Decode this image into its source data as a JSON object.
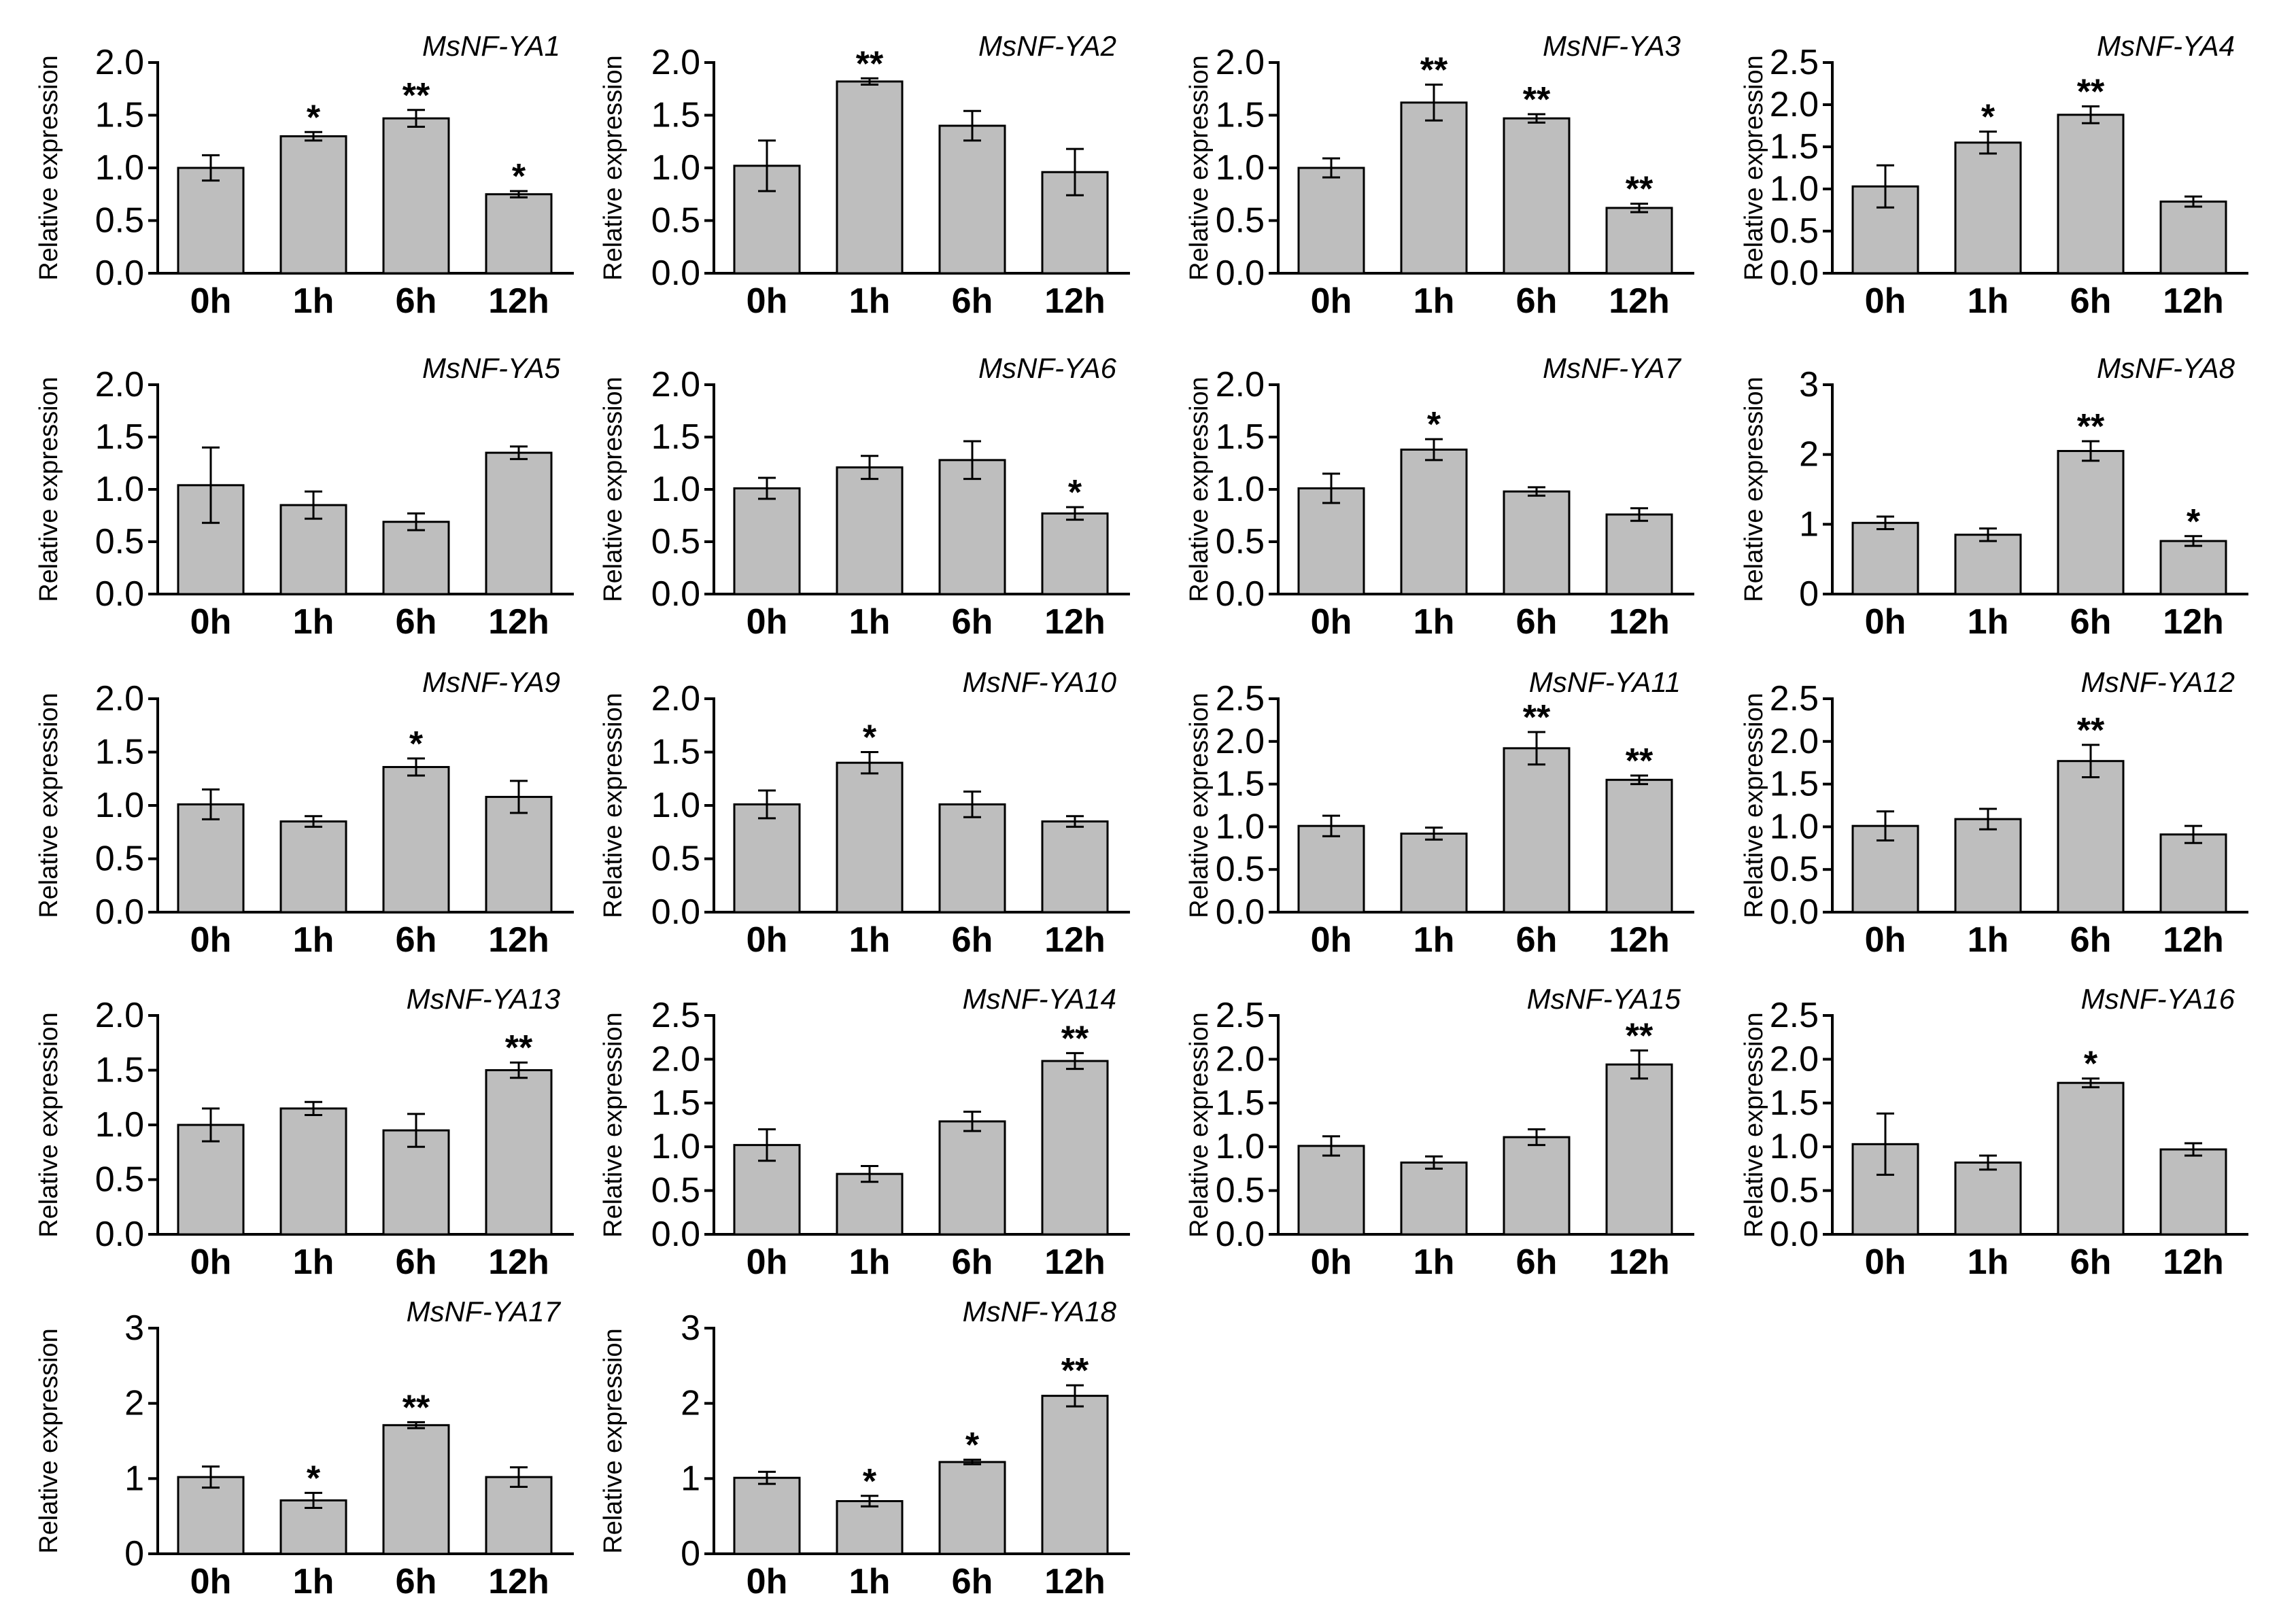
{
  "figure": {
    "ylabel": "Relative expression",
    "categories": [
      "0h",
      "1h",
      "6h",
      "12h"
    ]
  },
  "style": {
    "bar_fill": "#bebebe",
    "stroke": "#000000"
  },
  "chart_data": [
    {
      "type": "bar",
      "title": "MsNF-YA1",
      "xlabel": "",
      "ylabel": "Relative expression",
      "categories": [
        "0h",
        "1h",
        "6h",
        "12h"
      ],
      "ylim": [
        0,
        2.0
      ],
      "yticks": [
        "0.0",
        "0.5",
        "1.0",
        "1.5",
        "2.0"
      ],
      "values": [
        1.0,
        1.3,
        1.47,
        0.75
      ],
      "errors": [
        0.12,
        0.04,
        0.08,
        0.03
      ],
      "annotations": [
        "",
        "*",
        "**",
        "*"
      ]
    },
    {
      "type": "bar",
      "title": "MsNF-YA2",
      "xlabel": "",
      "ylabel": "Relative expression",
      "categories": [
        "0h",
        "1h",
        "6h",
        "12h"
      ],
      "ylim": [
        0,
        2.0
      ],
      "yticks": [
        "0.0",
        "0.5",
        "1.0",
        "1.5",
        "2.0"
      ],
      "values": [
        1.02,
        1.82,
        1.4,
        0.96
      ],
      "errors": [
        0.24,
        0.03,
        0.14,
        0.22
      ],
      "annotations": [
        "",
        "**",
        "",
        ""
      ]
    },
    {
      "type": "bar",
      "title": "MsNF-YA3",
      "xlabel": "",
      "ylabel": "Relative expression",
      "categories": [
        "0h",
        "1h",
        "6h",
        "12h"
      ],
      "ylim": [
        0,
        2.0
      ],
      "yticks": [
        "0.0",
        "0.5",
        "1.0",
        "1.5",
        "2.0"
      ],
      "values": [
        1.0,
        1.62,
        1.47,
        0.62
      ],
      "errors": [
        0.09,
        0.17,
        0.04,
        0.04
      ],
      "annotations": [
        "",
        "**",
        "**",
        "**"
      ]
    },
    {
      "type": "bar",
      "title": "MsNF-YA4",
      "xlabel": "",
      "ylabel": "Relative expression",
      "categories": [
        "0h",
        "1h",
        "6h",
        "12h"
      ],
      "ylim": [
        0,
        2.5
      ],
      "yticks": [
        "0.0",
        "0.5",
        "1.0",
        "1.5",
        "2.0",
        "2.5"
      ],
      "values": [
        1.03,
        1.55,
        1.88,
        0.85
      ],
      "errors": [
        0.25,
        0.13,
        0.1,
        0.06
      ],
      "annotations": [
        "",
        "*",
        "**",
        ""
      ]
    },
    {
      "type": "bar",
      "title": "MsNF-YA5",
      "xlabel": "",
      "ylabel": "Relative expression",
      "categories": [
        "0h",
        "1h",
        "6h",
        "12h"
      ],
      "ylim": [
        0,
        2.0
      ],
      "yticks": [
        "0.0",
        "0.5",
        "1.0",
        "1.5",
        "2.0"
      ],
      "values": [
        1.04,
        0.85,
        0.69,
        1.35
      ],
      "errors": [
        0.36,
        0.13,
        0.08,
        0.06
      ],
      "annotations": [
        "",
        "",
        "",
        ""
      ]
    },
    {
      "type": "bar",
      "title": "MsNF-YA6",
      "xlabel": "",
      "ylabel": "Relative expression",
      "categories": [
        "0h",
        "1h",
        "6h",
        "12h"
      ],
      "ylim": [
        0,
        2.0
      ],
      "yticks": [
        "0.0",
        "0.5",
        "1.0",
        "1.5",
        "2.0"
      ],
      "values": [
        1.01,
        1.21,
        1.28,
        0.77
      ],
      "errors": [
        0.1,
        0.11,
        0.18,
        0.06
      ],
      "annotations": [
        "",
        "",
        "",
        "*"
      ]
    },
    {
      "type": "bar",
      "title": "MsNF-YA7",
      "xlabel": "",
      "ylabel": "Relative expression",
      "categories": [
        "0h",
        "1h",
        "6h",
        "12h"
      ],
      "ylim": [
        0,
        2.0
      ],
      "yticks": [
        "0.0",
        "0.5",
        "1.0",
        "1.5",
        "2.0"
      ],
      "values": [
        1.01,
        1.38,
        0.98,
        0.76
      ],
      "errors": [
        0.14,
        0.1,
        0.04,
        0.06
      ],
      "annotations": [
        "",
        "*",
        "",
        ""
      ]
    },
    {
      "type": "bar",
      "title": "MsNF-YA8",
      "xlabel": "",
      "ylabel": "Relative expression",
      "categories": [
        "0h",
        "1h",
        "6h",
        "12h"
      ],
      "ylim": [
        0,
        3
      ],
      "yticks": [
        "0",
        "1",
        "2",
        "3"
      ],
      "values": [
        1.02,
        0.85,
        2.05,
        0.76
      ],
      "errors": [
        0.09,
        0.09,
        0.14,
        0.07
      ],
      "annotations": [
        "",
        "",
        "**",
        "*"
      ]
    },
    {
      "type": "bar",
      "title": "MsNF-YA9",
      "xlabel": "",
      "ylabel": "Relative expression",
      "categories": [
        "0h",
        "1h",
        "6h",
        "12h"
      ],
      "ylim": [
        0,
        2.0
      ],
      "yticks": [
        "0.0",
        "0.5",
        "1.0",
        "1.5",
        "2.0"
      ],
      "values": [
        1.01,
        0.85,
        1.36,
        1.08
      ],
      "errors": [
        0.14,
        0.05,
        0.08,
        0.15
      ],
      "annotations": [
        "",
        "",
        "*",
        ""
      ]
    },
    {
      "type": "bar",
      "title": "MsNF-YA10",
      "xlabel": "",
      "ylabel": "Relative expression",
      "categories": [
        "0h",
        "1h",
        "6h",
        "12h"
      ],
      "ylim": [
        0,
        2.0
      ],
      "yticks": [
        "0.0",
        "0.5",
        "1.0",
        "1.5",
        "2.0"
      ],
      "values": [
        1.01,
        1.4,
        1.01,
        0.85
      ],
      "errors": [
        0.13,
        0.1,
        0.12,
        0.05
      ],
      "annotations": [
        "",
        "*",
        "",
        ""
      ]
    },
    {
      "type": "bar",
      "title": "MsNF-YA11",
      "xlabel": "",
      "ylabel": "Relative expression",
      "categories": [
        "0h",
        "1h",
        "6h",
        "12h"
      ],
      "ylim": [
        0,
        2.5
      ],
      "yticks": [
        "0.0",
        "0.5",
        "1.0",
        "1.5",
        "2.0",
        "2.5"
      ],
      "values": [
        1.01,
        0.92,
        1.92,
        1.55
      ],
      "errors": [
        0.12,
        0.07,
        0.19,
        0.05
      ],
      "annotations": [
        "",
        "",
        "**",
        "**"
      ]
    },
    {
      "type": "bar",
      "title": "MsNF-YA12",
      "xlabel": "",
      "ylabel": "Relative expression",
      "categories": [
        "0h",
        "1h",
        "6h",
        "12h"
      ],
      "ylim": [
        0,
        2.5
      ],
      "yticks": [
        "0.0",
        "0.5",
        "1.0",
        "1.5",
        "2.0",
        "2.5"
      ],
      "values": [
        1.01,
        1.09,
        1.77,
        0.91
      ],
      "errors": [
        0.17,
        0.12,
        0.19,
        0.1
      ],
      "annotations": [
        "",
        "",
        "**",
        ""
      ]
    },
    {
      "type": "bar",
      "title": "MsNF-YA13",
      "xlabel": "",
      "ylabel": "Relative expression",
      "categories": [
        "0h",
        "1h",
        "6h",
        "12h"
      ],
      "ylim": [
        0,
        2.0
      ],
      "yticks": [
        "0.0",
        "0.5",
        "1.0",
        "1.5",
        "2.0"
      ],
      "values": [
        1.0,
        1.15,
        0.95,
        1.5
      ],
      "errors": [
        0.15,
        0.06,
        0.15,
        0.07
      ],
      "annotations": [
        "",
        "",
        "",
        "**"
      ]
    },
    {
      "type": "bar",
      "title": "MsNF-YA14",
      "xlabel": "",
      "ylabel": "Relative expression",
      "categories": [
        "0h",
        "1h",
        "6h",
        "12h"
      ],
      "ylim": [
        0,
        2.5
      ],
      "yticks": [
        "0.0",
        "0.5",
        "1.0",
        "1.5",
        "2.0",
        "2.5"
      ],
      "values": [
        1.02,
        0.69,
        1.29,
        1.98
      ],
      "errors": [
        0.18,
        0.09,
        0.11,
        0.09
      ],
      "annotations": [
        "",
        "",
        "",
        "**"
      ]
    },
    {
      "type": "bar",
      "title": "MsNF-YA15",
      "xlabel": "",
      "ylabel": "Relative expression",
      "categories": [
        "0h",
        "1h",
        "6h",
        "12h"
      ],
      "ylim": [
        0,
        2.5
      ],
      "yticks": [
        "0.0",
        "0.5",
        "1.0",
        "1.5",
        "2.0",
        "2.5"
      ],
      "values": [
        1.01,
        0.82,
        1.11,
        1.94
      ],
      "errors": [
        0.11,
        0.07,
        0.09,
        0.16
      ],
      "annotations": [
        "",
        "",
        "",
        "**"
      ]
    },
    {
      "type": "bar",
      "title": "MsNF-YA16",
      "xlabel": "",
      "ylabel": "Relative expression",
      "categories": [
        "0h",
        "1h",
        "6h",
        "12h"
      ],
      "ylim": [
        0,
        2.5
      ],
      "yticks": [
        "0.0",
        "0.5",
        "1.0",
        "1.5",
        "2.0",
        "2.5"
      ],
      "values": [
        1.03,
        0.82,
        1.73,
        0.97
      ],
      "errors": [
        0.35,
        0.08,
        0.05,
        0.07
      ],
      "annotations": [
        "",
        "",
        "*",
        ""
      ]
    },
    {
      "type": "bar",
      "title": "MsNF-YA17",
      "xlabel": "",
      "ylabel": "Relative expression",
      "categories": [
        "0h",
        "1h",
        "6h",
        "12h"
      ],
      "ylim": [
        0,
        3
      ],
      "yticks": [
        "0",
        "1",
        "2",
        "3"
      ],
      "values": [
        1.02,
        0.71,
        1.71,
        1.02
      ],
      "errors": [
        0.14,
        0.1,
        0.04,
        0.13
      ],
      "annotations": [
        "",
        "*",
        "**",
        ""
      ]
    },
    {
      "type": "bar",
      "title": "MsNF-YA18",
      "xlabel": "",
      "ylabel": "Relative expression",
      "categories": [
        "0h",
        "1h",
        "6h",
        "12h"
      ],
      "ylim": [
        0,
        3
      ],
      "yticks": [
        "0",
        "1",
        "2",
        "3"
      ],
      "values": [
        1.01,
        0.7,
        1.22,
        2.1
      ],
      "errors": [
        0.08,
        0.07,
        0.03,
        0.14
      ],
      "annotations": [
        "",
        "*",
        "*",
        "**"
      ]
    }
  ]
}
